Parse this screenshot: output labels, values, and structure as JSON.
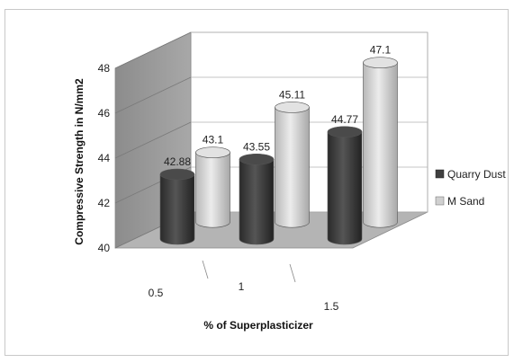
{
  "chart_data": {
    "type": "bar",
    "style": "3d-cylinder-clustered",
    "categories": [
      "0.5",
      "1",
      "1.5"
    ],
    "series": [
      {
        "name": "Quarry Dust",
        "values": [
          42.88,
          43.55,
          44.77
        ],
        "color": "#3f3f3f"
      },
      {
        "name": "M Sand",
        "values": [
          43.1,
          45.11,
          47.1
        ],
        "color": "#d0d0d0"
      }
    ],
    "data_labels": [
      [
        "42.88",
        "43.55",
        "44.77"
      ],
      [
        "43.1",
        "45.11",
        "47.1"
      ]
    ],
    "xlabel": "% of Superplasticizer",
    "ylabel": "Compressive Strength in N/mm2",
    "ylim": [
      40,
      48
    ],
    "yticks": [
      "40",
      "42",
      "44",
      "46",
      "48"
    ],
    "grid": true,
    "legend_position": "right",
    "colors": {
      "wall": "#9a9a9a",
      "floor": "#b4b4b4",
      "back_wall": "#ffffff",
      "grid": "#b0b0b0"
    }
  }
}
